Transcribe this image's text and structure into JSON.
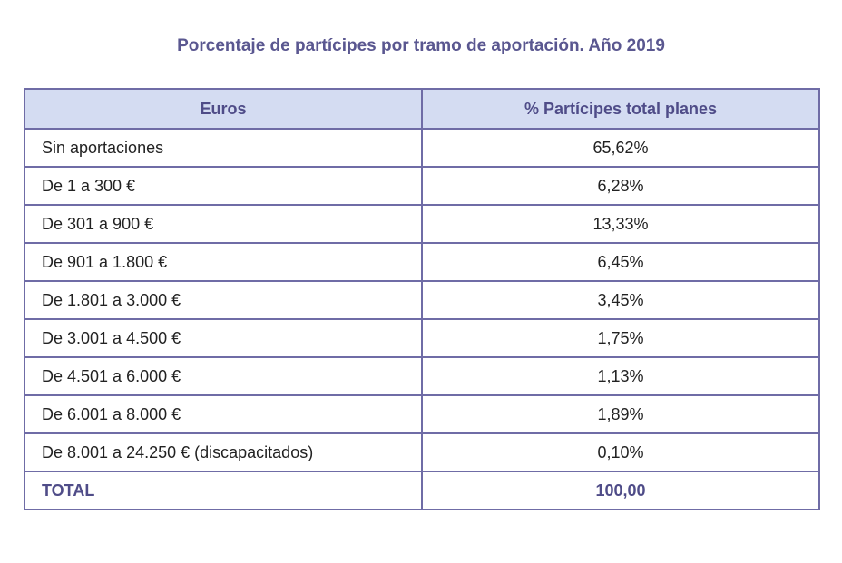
{
  "title": "Porcentaje de partícipes por tramo de aportación. Año 2019",
  "columns": [
    "Euros",
    "% Partícipes total planes"
  ],
  "rows": [
    {
      "tramo": "Sin aportaciones",
      "pct": "65,62%"
    },
    {
      "tramo": "De 1 a 300 €",
      "pct": "6,28%"
    },
    {
      "tramo": "De 301 a 900 €",
      "pct": "13,33%"
    },
    {
      "tramo": "De 901 a 1.800 €",
      "pct": "6,45%"
    },
    {
      "tramo": "De 1.801 a 3.000 €",
      "pct": "3,45%"
    },
    {
      "tramo": "De 3.001 a 4.500 €",
      "pct": "1,75%"
    },
    {
      "tramo": "De 4.501 a 6.000 €",
      "pct": "1,13%"
    },
    {
      "tramo": "De 6.001 a 8.000 €",
      "pct": "1,89%"
    },
    {
      "tramo": "De 8.001 a 24.250 € (discapacitados)",
      "pct": "0,10%"
    }
  ],
  "total": {
    "tramo": "TOTAL",
    "pct": "100,00"
  },
  "colors": {
    "header_bg": "#d4dcf2",
    "border": "#6f6ca6",
    "accent_text": "#4f4c88"
  }
}
